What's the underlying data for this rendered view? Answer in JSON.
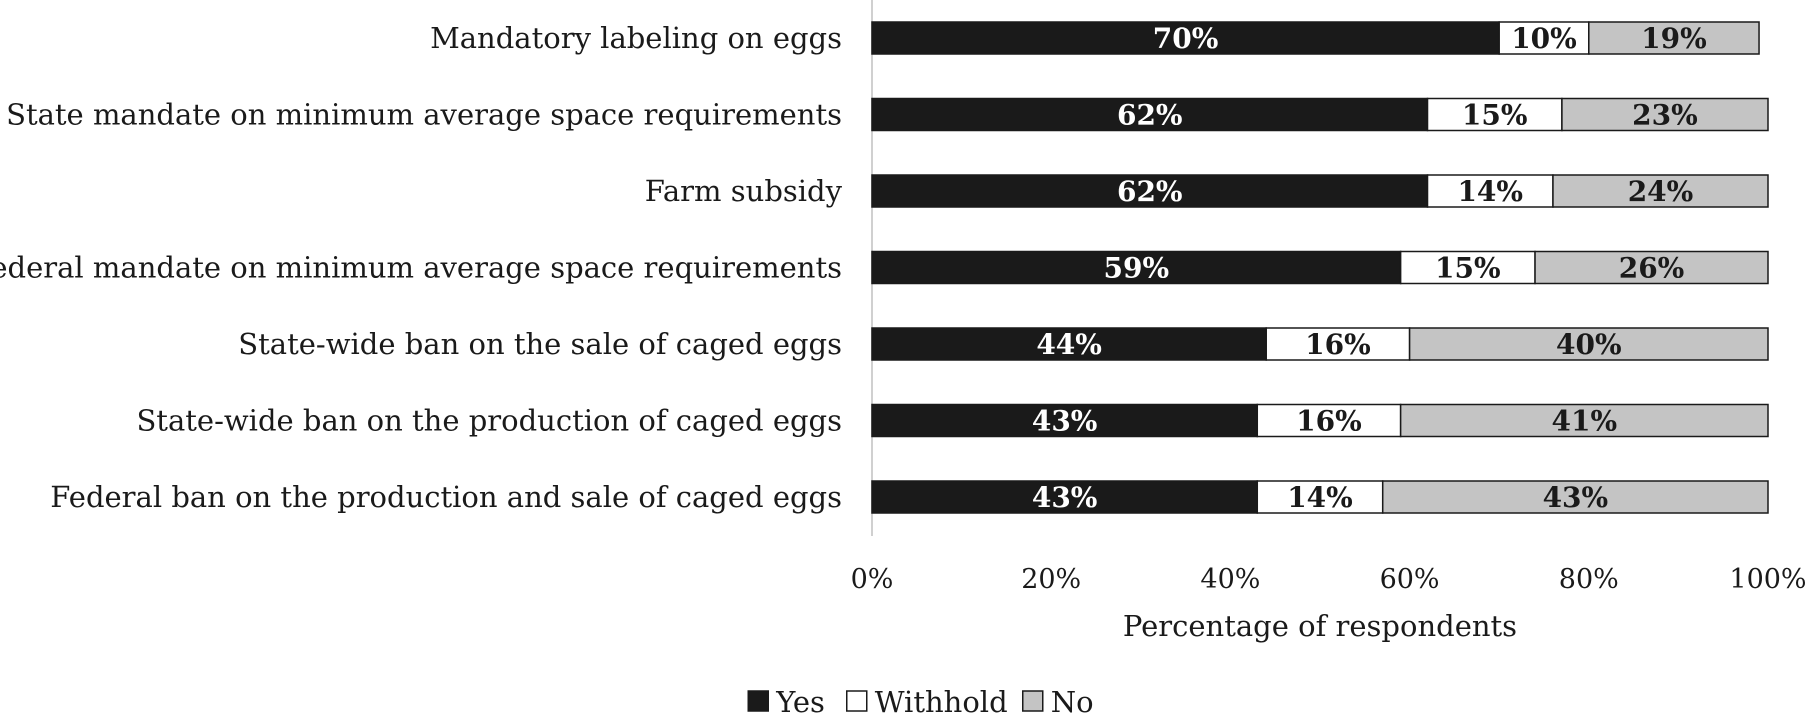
{
  "chart_data": {
    "type": "bar",
    "orientation": "horizontal",
    "stacked": true,
    "title": "",
    "xlabel": "Percentage of respondents",
    "ylabel": "",
    "xlim": [
      0,
      100
    ],
    "x_ticks": [
      "0%",
      "20%",
      "40%",
      "60%",
      "80%",
      "100%"
    ],
    "categories": [
      "Mandatory labeling on eggs",
      "State mandate on minimum average space requirements",
      "Farm subsidy",
      "Federal mandate on minimum average space requirements",
      "State-wide ban on the sale of caged eggs",
      "State-wide ban on the production of caged eggs",
      "Federal ban on the production and sale of caged eggs"
    ],
    "series": [
      {
        "name": "Yes",
        "color": "#1a1a1a",
        "label_color": "#ffffff",
        "values": [
          70,
          62,
          62,
          59,
          44,
          43,
          43
        ]
      },
      {
        "name": "Withhold",
        "color": "#ffffff",
        "label_color": "#1a1a1a",
        "values": [
          10,
          15,
          14,
          15,
          16,
          16,
          14
        ]
      },
      {
        "name": "No",
        "color": "#c4c4c4",
        "label_color": "#1a1a1a",
        "values": [
          19,
          23,
          24,
          26,
          40,
          41,
          43
        ]
      }
    ],
    "legend_position": "bottom-center",
    "grid": false
  }
}
